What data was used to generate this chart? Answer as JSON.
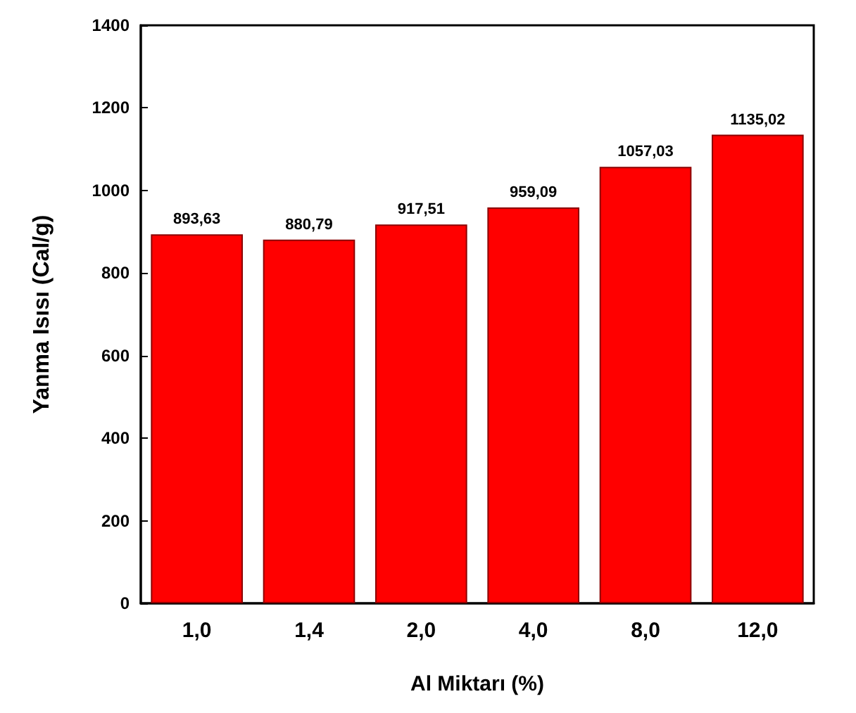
{
  "chart_data": {
    "type": "bar",
    "xlabel": "Al Miktarı (%)",
    "ylabel": "Yanma Isısı (Cal/g)",
    "categories": [
      "1,0",
      "1,4",
      "2,0",
      "4,0",
      "8,0",
      "12,0"
    ],
    "values": [
      893.63,
      880.79,
      917.51,
      959.09,
      1057.03,
      1135.02
    ],
    "value_labels": [
      "893,63",
      "880,79",
      "917,51",
      "959,09",
      "1057,03",
      "1135,02"
    ],
    "color": "#ff0000",
    "ylim": [
      0,
      1400
    ],
    "yticks": [
      0,
      200,
      400,
      600,
      800,
      1000,
      1200,
      1400
    ],
    "grid": false
  }
}
